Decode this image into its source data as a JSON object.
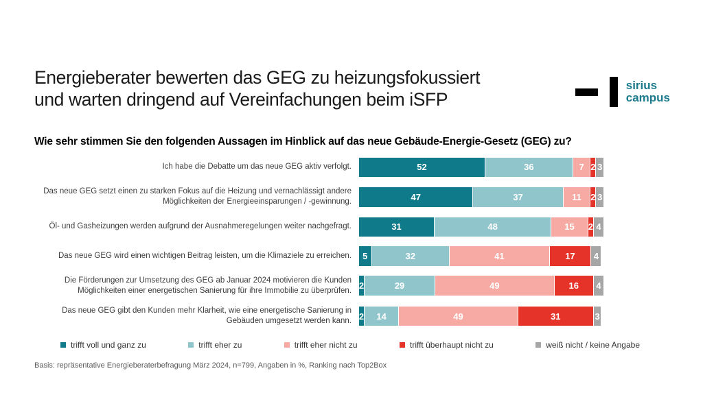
{
  "slide": {
    "title_line1": "Energieberater bewerten das GEG zu heizungsfokussiert",
    "title_line2": "und warten dringend auf Vereinfachungen beim iSFP",
    "question": "Wie sehr stimmen Sie den folgenden Aussagen im Hinblick auf das neue Gebäude-Energie-Gesetz (GEG) zu?",
    "footer": "Basis: repräsentative Energieberaterbefragung März 2024, n=799, Angaben in %, Ranking nach Top2Box"
  },
  "logo": {
    "line1": "sirius",
    "line2": "campus",
    "text_color": "#1b7b8c"
  },
  "chart_data": {
    "type": "bar",
    "orientation": "horizontal-stacked",
    "unit": "%",
    "value_labels": true,
    "xlim": [
      0,
      100
    ],
    "legend_position": "bottom",
    "categories": [
      "Ich habe die Debatte um das neue GEG aktiv verfolgt.",
      "Das neue GEG setzt einen zu starken Fokus auf die Heizung und vernachlässigt andere Möglichkeiten der Energieeinsparungen / -gewinnung.",
      "Öl- und Gasheizungen werden aufgrund der Ausnahmeregelungen weiter nachgefragt.",
      "Das neue GEG wird einen wichtigen Beitrag leisten, um die Klimaziele zu erreichen.",
      "Die Förderungen zur Umsetzung des GEG ab Januar 2024 motivieren die Kunden Möglichkeiten einer energetischen Sanierung für ihre Immobilie zu überprüfen.",
      "Das neue GEG gibt den Kunden mehr Klarheit, wie eine energetische Sanierung in Gebäuden umgesetzt werden kann."
    ],
    "series": [
      {
        "name": "trifft voll und ganz zu",
        "color": "#0f7a8a",
        "values": [
          52,
          47,
          31,
          5,
          2,
          2
        ]
      },
      {
        "name": "trifft eher zu",
        "color": "#90c5cb",
        "values": [
          36,
          37,
          48,
          32,
          29,
          14
        ]
      },
      {
        "name": "trifft eher nicht zu",
        "color": "#f6aaa3",
        "values": [
          7,
          11,
          15,
          41,
          49,
          49
        ]
      },
      {
        "name": "trifft überhaupt nicht zu",
        "color": "#e6332a",
        "values": [
          2,
          2,
          2,
          17,
          16,
          31
        ]
      },
      {
        "name": "weiß nicht / keine Angabe",
        "color": "#a6a6a6",
        "values": [
          3,
          3,
          4,
          4,
          4,
          3
        ]
      }
    ]
  }
}
